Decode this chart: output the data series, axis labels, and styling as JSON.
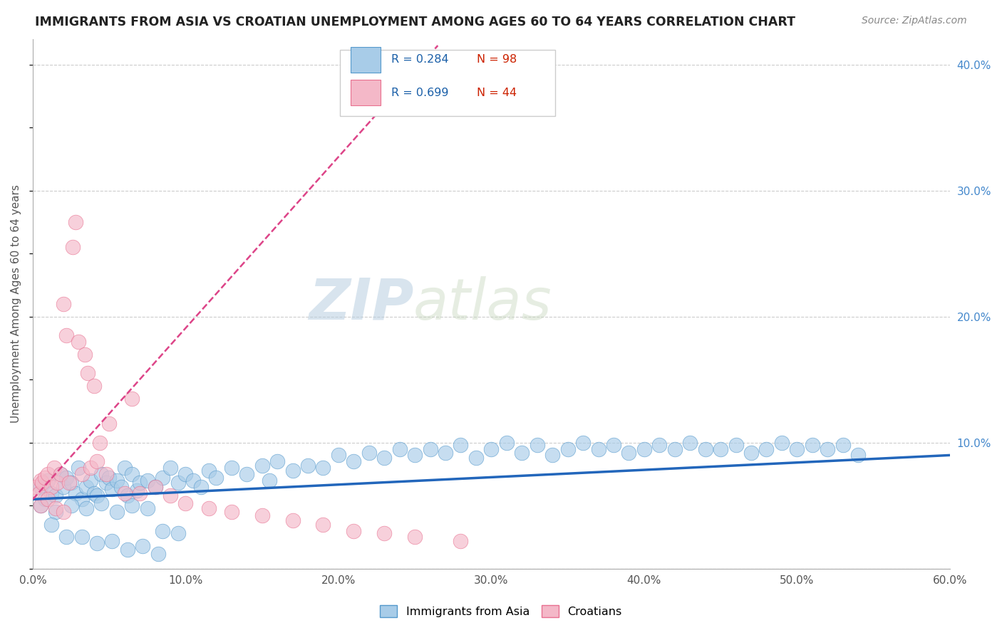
{
  "title": "IMMIGRANTS FROM ASIA VS CROATIAN UNEMPLOYMENT AMONG AGES 60 TO 64 YEARS CORRELATION CHART",
  "source_text": "Source: ZipAtlas.com",
  "ylabel": "Unemployment Among Ages 60 to 64 years",
  "xlim": [
    0.0,
    0.6
  ],
  "ylim": [
    0.0,
    0.42
  ],
  "xtick_labels": [
    "0.0%",
    "10.0%",
    "20.0%",
    "30.0%",
    "40.0%",
    "50.0%",
    "60.0%"
  ],
  "xtick_vals": [
    0.0,
    0.1,
    0.2,
    0.3,
    0.4,
    0.5,
    0.6
  ],
  "ytick_labels": [
    "",
    "10.0%",
    "20.0%",
    "30.0%",
    "40.0%"
  ],
  "ytick_vals": [
    0.0,
    0.1,
    0.2,
    0.3,
    0.4
  ],
  "grid_color": "#cccccc",
  "background_color": "#ffffff",
  "watermark_zip": "ZIP",
  "watermark_atlas": "atlas",
  "legend_r_blue": "R = 0.284",
  "legend_n_blue": "N = 98",
  "legend_r_pink": "R = 0.699",
  "legend_n_pink": "N = 44",
  "blue_color": "#a8cce8",
  "pink_color": "#f4b8c8",
  "blue_edge_color": "#5599cc",
  "pink_edge_color": "#e87090",
  "blue_line_color": "#2266bb",
  "pink_line_color": "#dd4488",
  "label_blue": "Immigrants from Asia",
  "label_pink": "Croatians",
  "blue_scatter_x": [
    0.005,
    0.008,
    0.01,
    0.012,
    0.015,
    0.018,
    0.02,
    0.022,
    0.025,
    0.028,
    0.03,
    0.032,
    0.035,
    0.038,
    0.04,
    0.042,
    0.045,
    0.048,
    0.05,
    0.052,
    0.055,
    0.058,
    0.06,
    0.062,
    0.065,
    0.068,
    0.07,
    0.075,
    0.08,
    0.085,
    0.09,
    0.095,
    0.1,
    0.105,
    0.11,
    0.115,
    0.12,
    0.13,
    0.14,
    0.15,
    0.155,
    0.16,
    0.17,
    0.18,
    0.19,
    0.2,
    0.21,
    0.22,
    0.23,
    0.24,
    0.25,
    0.26,
    0.27,
    0.28,
    0.29,
    0.3,
    0.31,
    0.32,
    0.33,
    0.34,
    0.35,
    0.36,
    0.37,
    0.38,
    0.39,
    0.4,
    0.41,
    0.42,
    0.43,
    0.44,
    0.45,
    0.46,
    0.47,
    0.48,
    0.49,
    0.5,
    0.51,
    0.52,
    0.53,
    0.54,
    0.005,
    0.015,
    0.025,
    0.035,
    0.045,
    0.055,
    0.065,
    0.075,
    0.085,
    0.095,
    0.012,
    0.022,
    0.032,
    0.042,
    0.052,
    0.062,
    0.072,
    0.082
  ],
  "blue_scatter_y": [
    0.065,
    0.055,
    0.07,
    0.06,
    0.058,
    0.075,
    0.065,
    0.072,
    0.068,
    0.06,
    0.08,
    0.055,
    0.065,
    0.07,
    0.06,
    0.058,
    0.075,
    0.068,
    0.072,
    0.063,
    0.07,
    0.065,
    0.08,
    0.058,
    0.075,
    0.062,
    0.068,
    0.07,
    0.065,
    0.072,
    0.08,
    0.068,
    0.075,
    0.07,
    0.065,
    0.078,
    0.072,
    0.08,
    0.075,
    0.082,
    0.07,
    0.085,
    0.078,
    0.082,
    0.08,
    0.09,
    0.085,
    0.092,
    0.088,
    0.095,
    0.09,
    0.095,
    0.092,
    0.098,
    0.088,
    0.095,
    0.1,
    0.092,
    0.098,
    0.09,
    0.095,
    0.1,
    0.095,
    0.098,
    0.092,
    0.095,
    0.098,
    0.095,
    0.1,
    0.095,
    0.095,
    0.098,
    0.092,
    0.095,
    0.1,
    0.095,
    0.098,
    0.095,
    0.098,
    0.09,
    0.05,
    0.045,
    0.05,
    0.048,
    0.052,
    0.045,
    0.05,
    0.048,
    0.03,
    0.028,
    0.035,
    0.025,
    0.025,
    0.02,
    0.022,
    0.015,
    0.018,
    0.012
  ],
  "pink_scatter_x": [
    0.002,
    0.004,
    0.005,
    0.006,
    0.008,
    0.01,
    0.012,
    0.014,
    0.016,
    0.018,
    0.02,
    0.022,
    0.024,
    0.026,
    0.028,
    0.03,
    0.032,
    0.034,
    0.036,
    0.038,
    0.04,
    0.042,
    0.044,
    0.048,
    0.05,
    0.06,
    0.065,
    0.07,
    0.08,
    0.09,
    0.1,
    0.115,
    0.13,
    0.15,
    0.17,
    0.19,
    0.21,
    0.23,
    0.25,
    0.28,
    0.005,
    0.01,
    0.015,
    0.02
  ],
  "pink_scatter_y": [
    0.065,
    0.06,
    0.07,
    0.068,
    0.072,
    0.075,
    0.065,
    0.08,
    0.068,
    0.075,
    0.21,
    0.185,
    0.068,
    0.255,
    0.275,
    0.18,
    0.075,
    0.17,
    0.155,
    0.08,
    0.145,
    0.085,
    0.1,
    0.075,
    0.115,
    0.06,
    0.135,
    0.06,
    0.065,
    0.058,
    0.052,
    0.048,
    0.045,
    0.042,
    0.038,
    0.035,
    0.03,
    0.028,
    0.025,
    0.022,
    0.05,
    0.055,
    0.048,
    0.045
  ],
  "blue_line_x": [
    0.0,
    0.6
  ],
  "blue_line_y": [
    0.055,
    0.09
  ],
  "pink_line_x": [
    0.0,
    0.265
  ],
  "pink_line_y": [
    0.055,
    0.415
  ]
}
